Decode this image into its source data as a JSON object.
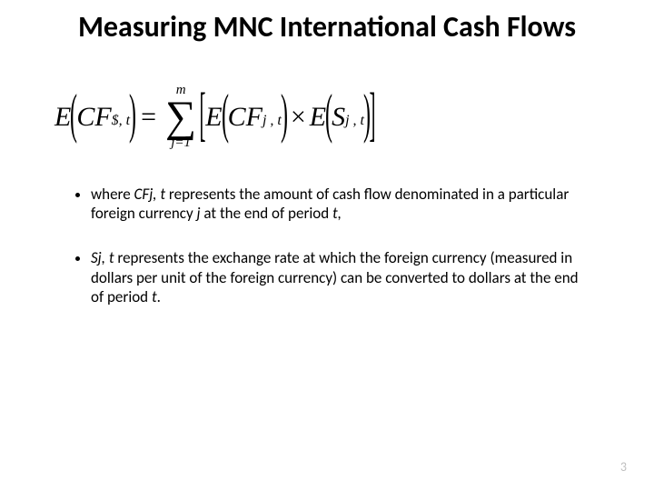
{
  "title": "Measuring MNC International Cash Flows",
  "formula": {
    "lhs_E": "E",
    "lhs_CF": "CF",
    "lhs_sub": "$, t",
    "eq": "=",
    "sum_upper": "m",
    "sum_lower": "j=1",
    "r1_E": "E",
    "r1_CF": "CF",
    "r1_sub": "j , t",
    "times": "×",
    "r2_E": "E",
    "r2_S": "S",
    "r2_sub": "j , t"
  },
  "bullet1_pre": "where ",
  "bullet1_var": "CFj, t",
  "bullet1_mid": " represents the amount of cash flow denominated in a particular foreign currency ",
  "bullet1_j": "j",
  "bullet1_mid2": " at the end of period ",
  "bullet1_t": "t,",
  "bullet2_var": "Sj, t",
  "bullet2_mid": " represents the exchange rate at which the foreign currency (measured in dollars per unit of the foreign currency) can be converted to dollars at the end of period ",
  "bullet2_t": "t",
  "bullet2_end": ".",
  "page_number": "3",
  "colors": {
    "background": "#ffffff",
    "text": "#000000",
    "page_num": "#bfbfbf"
  }
}
